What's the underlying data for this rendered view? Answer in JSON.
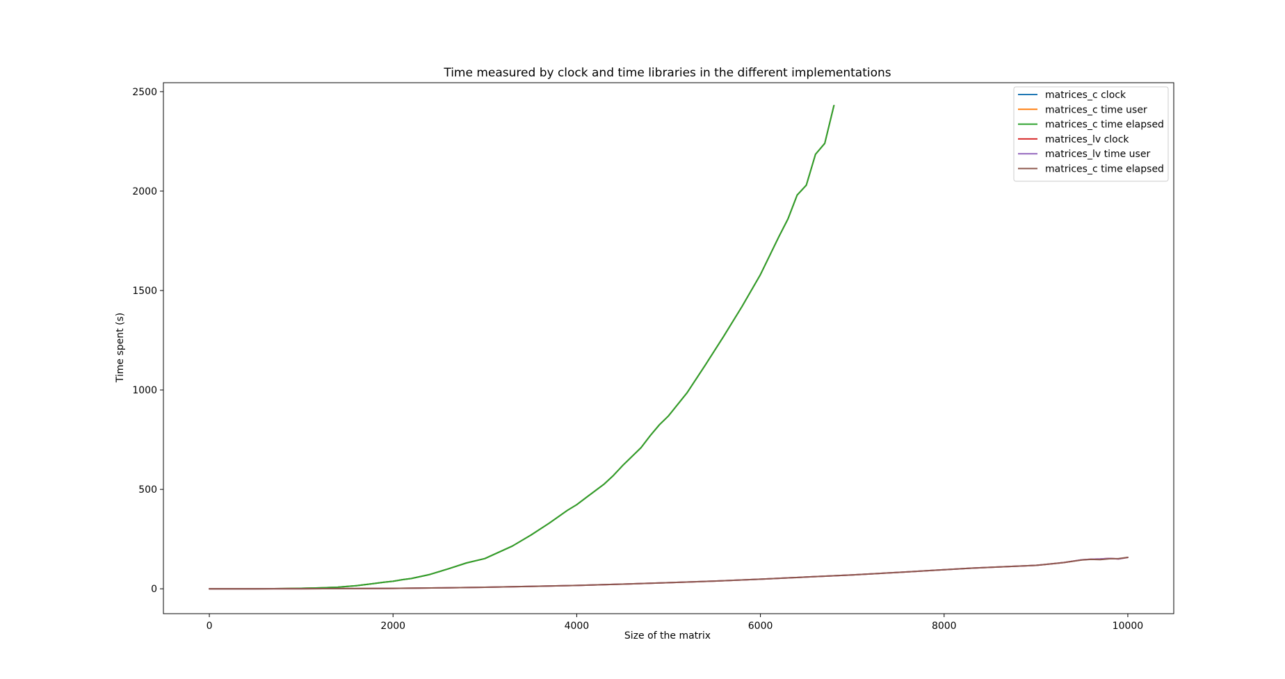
{
  "chart_data": {
    "type": "line",
    "title": "Time measured by clock and time libraries in the different implementations",
    "xlabel": "Size of the matrix",
    "ylabel": "Time spent (s)",
    "xlim": [
      -500,
      10500
    ],
    "ylim": [
      -125,
      2545
    ],
    "xticks": [
      0,
      2000,
      4000,
      6000,
      8000,
      10000
    ],
    "yticks": [
      0,
      500,
      1000,
      1500,
      2000,
      2500
    ],
    "grid": false,
    "legend_position": "upper right",
    "series": [
      {
        "name": "matrices_c clock",
        "color": "#1f77b4",
        "x": [
          0,
          200,
          400,
          600,
          800,
          1000,
          1200,
          1400,
          1600,
          1800,
          1900,
          2000,
          2100,
          2200,
          2300,
          2400,
          2600,
          2800,
          3000,
          3100,
          3300,
          3500,
          3700,
          3900,
          4000,
          4100,
          4300,
          4400,
          4500,
          4700,
          4800,
          4900,
          5000,
          5200,
          5400,
          5600,
          5800,
          6000,
          6200,
          6300,
          6400,
          6500,
          6600,
          6700,
          6800
        ],
        "y": [
          0,
          0,
          0.1,
          0.4,
          1,
          2.5,
          4.5,
          8,
          16,
          27,
          33,
          38,
          46,
          52,
          62,
          72,
          100,
          130,
          152,
          173,
          215,
          270,
          330,
          395,
          423,
          458,
          527,
          570,
          620,
          710,
          770,
          825,
          870,
          985,
          1125,
          1270,
          1420,
          1580,
          1770,
          1860,
          1980,
          2030,
          2185,
          2240,
          2430
        ]
      },
      {
        "name": "matrices_c time user",
        "color": "#ff7f0e",
        "x": [
          0,
          200,
          400,
          600,
          800,
          1000,
          1200,
          1400,
          1600,
          1800,
          1900,
          2000,
          2100,
          2200,
          2300,
          2400,
          2600,
          2800,
          3000,
          3100,
          3300,
          3500,
          3700,
          3900,
          4000,
          4100,
          4300,
          4400,
          4500,
          4700,
          4800,
          4900,
          5000,
          5200,
          5400,
          5600,
          5800,
          6000,
          6200,
          6300,
          6400,
          6500,
          6600,
          6700,
          6800
        ],
        "y": [
          0,
          0,
          0.1,
          0.4,
          1,
          2.5,
          4.5,
          8,
          16,
          27,
          33,
          38,
          46,
          52,
          62,
          72,
          100,
          130,
          152,
          173,
          215,
          270,
          330,
          395,
          423,
          458,
          527,
          570,
          620,
          710,
          770,
          825,
          870,
          985,
          1125,
          1270,
          1420,
          1580,
          1770,
          1860,
          1980,
          2030,
          2185,
          2240,
          2430
        ]
      },
      {
        "name": "matrices_c time elapsed",
        "color": "#2ca02c",
        "x": [
          0,
          200,
          400,
          600,
          800,
          1000,
          1200,
          1400,
          1600,
          1800,
          1900,
          2000,
          2100,
          2200,
          2300,
          2400,
          2600,
          2800,
          3000,
          3100,
          3300,
          3500,
          3700,
          3900,
          4000,
          4100,
          4300,
          4400,
          4500,
          4700,
          4800,
          4900,
          5000,
          5200,
          5400,
          5600,
          5800,
          6000,
          6200,
          6300,
          6400,
          6500,
          6600,
          6700,
          6800
        ],
        "y": [
          0,
          0,
          0.1,
          0.4,
          1,
          2.5,
          4.5,
          8,
          16,
          27,
          33,
          38,
          46,
          52,
          62,
          72,
          100,
          130,
          152,
          173,
          215,
          270,
          330,
          395,
          423,
          458,
          527,
          570,
          620,
          710,
          770,
          825,
          870,
          985,
          1125,
          1270,
          1420,
          1580,
          1770,
          1860,
          1980,
          2030,
          2185,
          2240,
          2430
        ]
      },
      {
        "name": "matrices_lv clock",
        "color": "#d62728",
        "x": [
          0,
          500,
          1000,
          1500,
          2000,
          2500,
          3000,
          3500,
          4000,
          4500,
          5000,
          5500,
          6000,
          6500,
          7000,
          7500,
          8000,
          8300,
          8600,
          9000,
          9300,
          9500,
          9600,
          9700,
          9800,
          9900,
          10000
        ],
        "y": [
          0,
          0,
          0.3,
          1,
          2.3,
          4.5,
          7.8,
          12,
          17,
          23.5,
          31,
          39,
          48.5,
          59,
          70,
          82.5,
          96,
          104,
          110,
          118,
          132,
          146,
          149,
          150,
          153,
          150,
          158
        ]
      },
      {
        "name": "matrices_lv time user",
        "color": "#9467bd",
        "x": [
          0,
          500,
          1000,
          1500,
          2000,
          2500,
          3000,
          3500,
          4000,
          4500,
          5000,
          5500,
          6000,
          6500,
          7000,
          7500,
          8000,
          8300,
          8600,
          9000,
          9300,
          9500,
          9600,
          9700,
          9800,
          9900,
          10000
        ],
        "y": [
          0,
          0,
          0.3,
          1,
          2.3,
          4.5,
          7.8,
          12,
          17,
          23.5,
          31,
          39,
          48.5,
          59,
          70,
          82.5,
          96,
          104,
          110,
          118,
          132,
          146,
          149,
          150,
          153,
          150,
          158
        ]
      },
      {
        "name": "matrices_c time elapsed",
        "color": "#8c564b",
        "x": [
          0,
          500,
          1000,
          1500,
          2000,
          2500,
          3000,
          3500,
          4000,
          4500,
          5000,
          5500,
          6000,
          6500,
          7000,
          7500,
          8000,
          8300,
          8600,
          9000,
          9300,
          9500,
          9600,
          9700,
          9800,
          9900,
          10000
        ],
        "y": [
          0,
          0,
          0.3,
          1,
          2.3,
          4.5,
          7.8,
          12,
          17,
          23.5,
          31,
          39,
          48.5,
          59,
          70,
          82.5,
          96,
          104,
          110,
          118,
          132,
          145,
          148,
          147,
          151,
          152,
          158
        ]
      }
    ]
  }
}
